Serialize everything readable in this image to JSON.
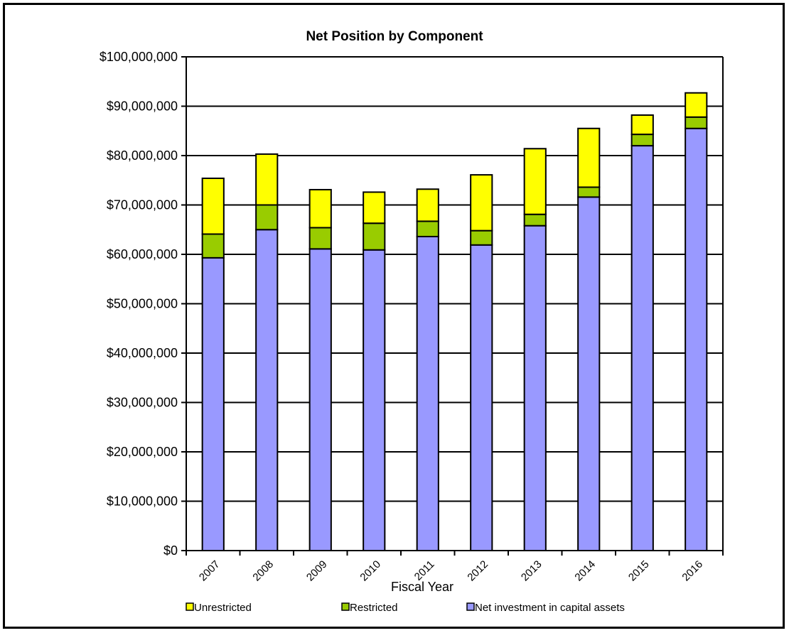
{
  "chart_data": {
    "type": "bar",
    "stacked": true,
    "title": "Net Position by Component",
    "xlabel": "Fiscal Year",
    "ylabel": "",
    "categories": [
      "2007",
      "2008",
      "2009",
      "2010",
      "2011",
      "2012",
      "2013",
      "2014",
      "2015",
      "2016"
    ],
    "ylim": [
      0,
      100000000
    ],
    "yticks": [
      0,
      10000000,
      20000000,
      30000000,
      40000000,
      50000000,
      60000000,
      70000000,
      80000000,
      90000000,
      100000000
    ],
    "ytick_labels": [
      "$0",
      "$10,000,000",
      "$20,000,000",
      "$30,000,000",
      "$40,000,000",
      "$50,000,000",
      "$60,000,000",
      "$70,000,000",
      "$80,000,000",
      "$90,000,000",
      "$100,000,000"
    ],
    "grid": true,
    "legend_position": "bottom",
    "series": [
      {
        "name": "Net investment in capital assets",
        "color": "#9999FF",
        "values": [
          59300000,
          65000000,
          61100000,
          60900000,
          63600000,
          61900000,
          65800000,
          71600000,
          82000000,
          85500000
        ]
      },
      {
        "name": "Restricted",
        "color": "#99CC00",
        "values": [
          4800000,
          5000000,
          4300000,
          5400000,
          3100000,
          2900000,
          2300000,
          2000000,
          2300000,
          2300000
        ]
      },
      {
        "name": "Unrestricted",
        "color": "#FFFF00",
        "values": [
          11300000,
          10300000,
          7700000,
          6300000,
          6500000,
          11300000,
          13300000,
          11900000,
          3900000,
          4900000
        ]
      }
    ],
    "legend_order": [
      "Unrestricted",
      "Restricted",
      "Net investment in capital assets"
    ]
  }
}
